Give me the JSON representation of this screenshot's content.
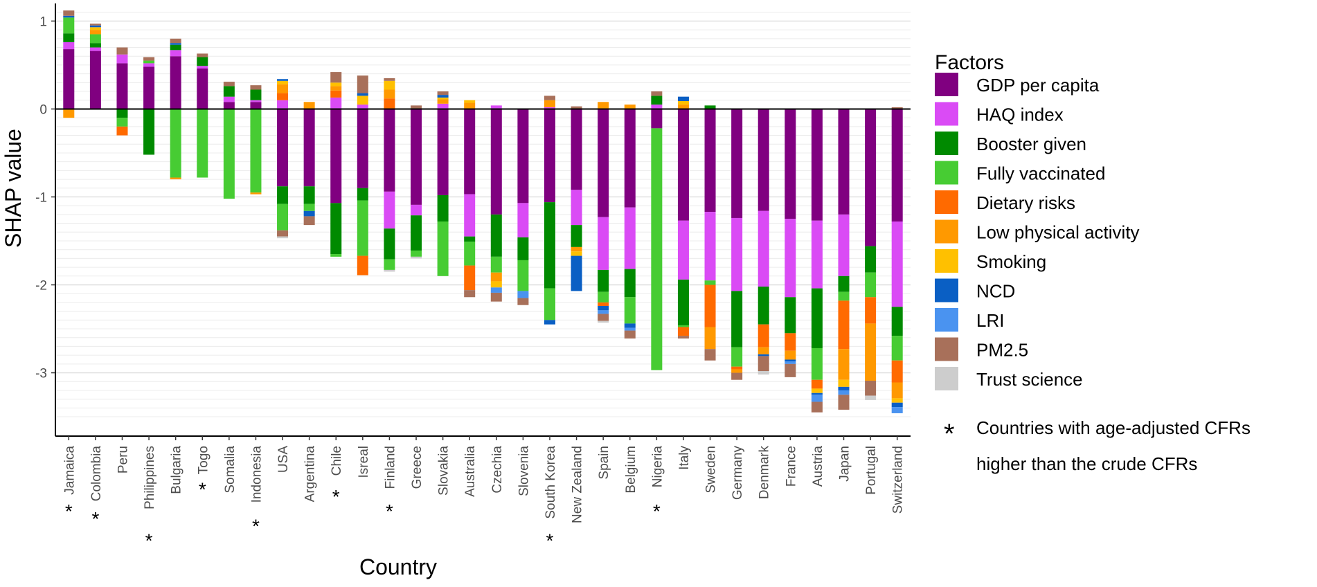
{
  "chart_data": {
    "type": "bar",
    "stacked": true,
    "xlabel": "Country",
    "ylabel": "SHAP value",
    "ylim": [
      -3.72,
      1.2
    ],
    "yticks": [
      1,
      0,
      -1,
      -2,
      -3
    ],
    "ytick_labels": [
      "1",
      "0",
      "-1",
      "-2",
      "-3"
    ],
    "categories": [
      "Jamaica",
      "Colombia",
      "Peru",
      "Philippines",
      "Bulgaria",
      "Togo",
      "Somalia",
      "Indonesia",
      "USA",
      "Argentina",
      "Chile",
      "Isreal",
      "Finland",
      "Greece",
      "Slovakia",
      "Australia",
      "Czechia",
      "Slovenia",
      "South Korea",
      "New Zealand",
      "Spain",
      "Belgium",
      "Nigeria",
      "Italy",
      "Sweden",
      "Germany",
      "Denmark",
      "France",
      "Austria",
      "Japan",
      "Portugal",
      "Switzerland"
    ],
    "starred": [
      true,
      true,
      false,
      true,
      false,
      true,
      false,
      true,
      false,
      false,
      true,
      false,
      true,
      false,
      false,
      false,
      false,
      false,
      true,
      false,
      false,
      false,
      true,
      false,
      false,
      false,
      false,
      false,
      false,
      false,
      false,
      false
    ],
    "legend_title": "Factors",
    "legend_position": "right",
    "series": [
      {
        "name": "GDP per capita",
        "color": "#800080",
        "values": [
          0.68,
          0.66,
          0.52,
          0.48,
          0.6,
          0.46,
          0.08,
          0.08,
          -0.88,
          -0.88,
          -1.07,
          -0.9,
          -0.94,
          -1.09,
          -0.98,
          -0.97,
          -1.2,
          -1.07,
          -1.06,
          -0.92,
          -1.23,
          -1.12,
          -0.22,
          -1.27,
          -1.17,
          -1.24,
          -1.16,
          -1.25,
          -1.27,
          -1.2,
          -1.56,
          -1.28
        ]
      },
      {
        "name": "HAQ index",
        "color": "#DA4BF5",
        "values": [
          0.08,
          0.04,
          0.1,
          0.04,
          0.07,
          0.03,
          0.06,
          0.02,
          0.1,
          0.0,
          0.13,
          0.05,
          -0.42,
          -0.12,
          0.06,
          -0.48,
          0.04,
          -0.39,
          0.02,
          -0.4,
          -0.6,
          -0.7,
          0.05,
          -0.67,
          -0.78,
          -0.83,
          -0.86,
          -0.89,
          -0.77,
          -0.7,
          0.0,
          -0.97
        ]
      },
      {
        "name": "Booster given",
        "color": "#008A00",
        "values": [
          0.1,
          0.05,
          -0.1,
          -0.52,
          0.06,
          0.1,
          0.12,
          0.12,
          -0.2,
          -0.2,
          -0.58,
          -0.14,
          -0.35,
          -0.4,
          -0.3,
          -0.06,
          -0.48,
          -0.26,
          -0.98,
          -0.25,
          -0.25,
          -0.32,
          0.1,
          -0.52,
          0.04,
          -0.64,
          -0.43,
          -0.41,
          -0.68,
          -0.18,
          -0.3,
          -0.33
        ]
      },
      {
        "name": "Fully vaccinated",
        "color": "#47CC33",
        "values": [
          0.18,
          0.1,
          -0.1,
          0.03,
          -0.78,
          -0.78,
          -1.02,
          -0.95,
          -0.3,
          -0.08,
          -0.03,
          -0.63,
          -0.12,
          -0.07,
          -0.62,
          -0.27,
          -0.18,
          -0.35,
          -0.36,
          0.0,
          -0.12,
          -0.3,
          -2.75,
          -0.02,
          -0.05,
          -0.22,
          0.0,
          0.0,
          -0.36,
          -0.1,
          -0.28,
          -0.28
        ]
      },
      {
        "name": "Dietary risks",
        "color": "#FF6A00",
        "values": [
          0.0,
          0.0,
          -0.1,
          0.0,
          0.0,
          0.0,
          0.0,
          0.0,
          0.08,
          0.0,
          0.08,
          -0.22,
          0.12,
          0.0,
          0.0,
          -0.28,
          0.0,
          0.0,
          0.0,
          0.0,
          -0.04,
          0.0,
          0.0,
          -0.1,
          -0.48,
          -0.03,
          -0.26,
          -0.2,
          -0.1,
          -0.55,
          -0.3,
          -0.25
        ]
      },
      {
        "name": "Low physical activity",
        "color": "#FF9900",
        "values": [
          -0.1,
          0.05,
          0.0,
          0.0,
          -0.02,
          0.0,
          0.0,
          -0.02,
          0.1,
          0.08,
          0.05,
          0.0,
          0.1,
          0.0,
          0.05,
          0.07,
          -0.1,
          0.0,
          0.08,
          -0.05,
          0.08,
          0.05,
          0.0,
          0.05,
          -0.25,
          -0.04,
          -0.08,
          -0.1,
          0.0,
          -0.35,
          -0.65,
          -0.18
        ]
      },
      {
        "name": "Smoking",
        "color": "#FFC000",
        "values": [
          0.0,
          0.03,
          0.0,
          0.0,
          0.0,
          0.0,
          0.0,
          0.0,
          0.04,
          0.0,
          0.04,
          0.1,
          0.1,
          0.0,
          0.02,
          0.03,
          -0.07,
          0.0,
          0.0,
          -0.05,
          0.0,
          0.0,
          0.0,
          0.04,
          0.0,
          0.0,
          0.0,
          0.0,
          -0.05,
          -0.08,
          0.0,
          -0.05
        ]
      },
      {
        "name": "NCD",
        "color": "#0A5FC4",
        "values": [
          0.02,
          0.02,
          0.0,
          0.0,
          0.02,
          0.0,
          0.0,
          0.0,
          0.02,
          -0.06,
          0.0,
          0.03,
          0.0,
          0.0,
          0.03,
          0.0,
          0.0,
          0.0,
          -0.05,
          -0.4,
          -0.05,
          -0.05,
          0.0,
          0.05,
          0.0,
          0.0,
          -0.02,
          -0.02,
          -0.02,
          -0.04,
          0.0,
          -0.05
        ]
      },
      {
        "name": "LRI",
        "color": "#4A93F0",
        "values": [
          0.0,
          0.0,
          0.0,
          0.0,
          0.0,
          0.0,
          0.0,
          0.0,
          0.0,
          0.0,
          0.0,
          0.0,
          0.0,
          0.0,
          0.0,
          0.0,
          -0.06,
          -0.08,
          0.0,
          0.0,
          -0.04,
          -0.03,
          0.0,
          0.0,
          0.0,
          0.0,
          0.0,
          -0.03,
          -0.08,
          -0.05,
          0.0,
          -0.07
        ]
      },
      {
        "name": "PM2.5",
        "color": "#A8705A",
        "values": [
          0.06,
          0.02,
          0.08,
          0.04,
          0.05,
          0.04,
          0.05,
          0.05,
          -0.07,
          -0.1,
          0.12,
          0.2,
          0.03,
          0.04,
          0.04,
          -0.08,
          -0.1,
          -0.08,
          0.05,
          0.03,
          -0.08,
          -0.09,
          0.05,
          -0.03,
          -0.13,
          -0.08,
          -0.17,
          -0.15,
          -0.12,
          -0.17,
          -0.17,
          0.02
        ]
      },
      {
        "name": "Trust science",
        "color": "#CDCDCD",
        "values": [
          0.0,
          0.0,
          0.0,
          0.0,
          0.0,
          0.0,
          0.0,
          0.0,
          -0.02,
          0.0,
          0.0,
          0.0,
          -0.02,
          -0.02,
          0.0,
          0.0,
          0.0,
          0.0,
          0.0,
          0.0,
          -0.02,
          0.0,
          0.0,
          0.0,
          0.0,
          0.0,
          -0.04,
          0.0,
          0.0,
          0.0,
          -0.05,
          0.0
        ]
      }
    ],
    "annotation_line1": "Countries with age-adjusted CFRs",
    "annotation_line2": "higher than the crude CFRs",
    "annotation_symbol": "*"
  }
}
